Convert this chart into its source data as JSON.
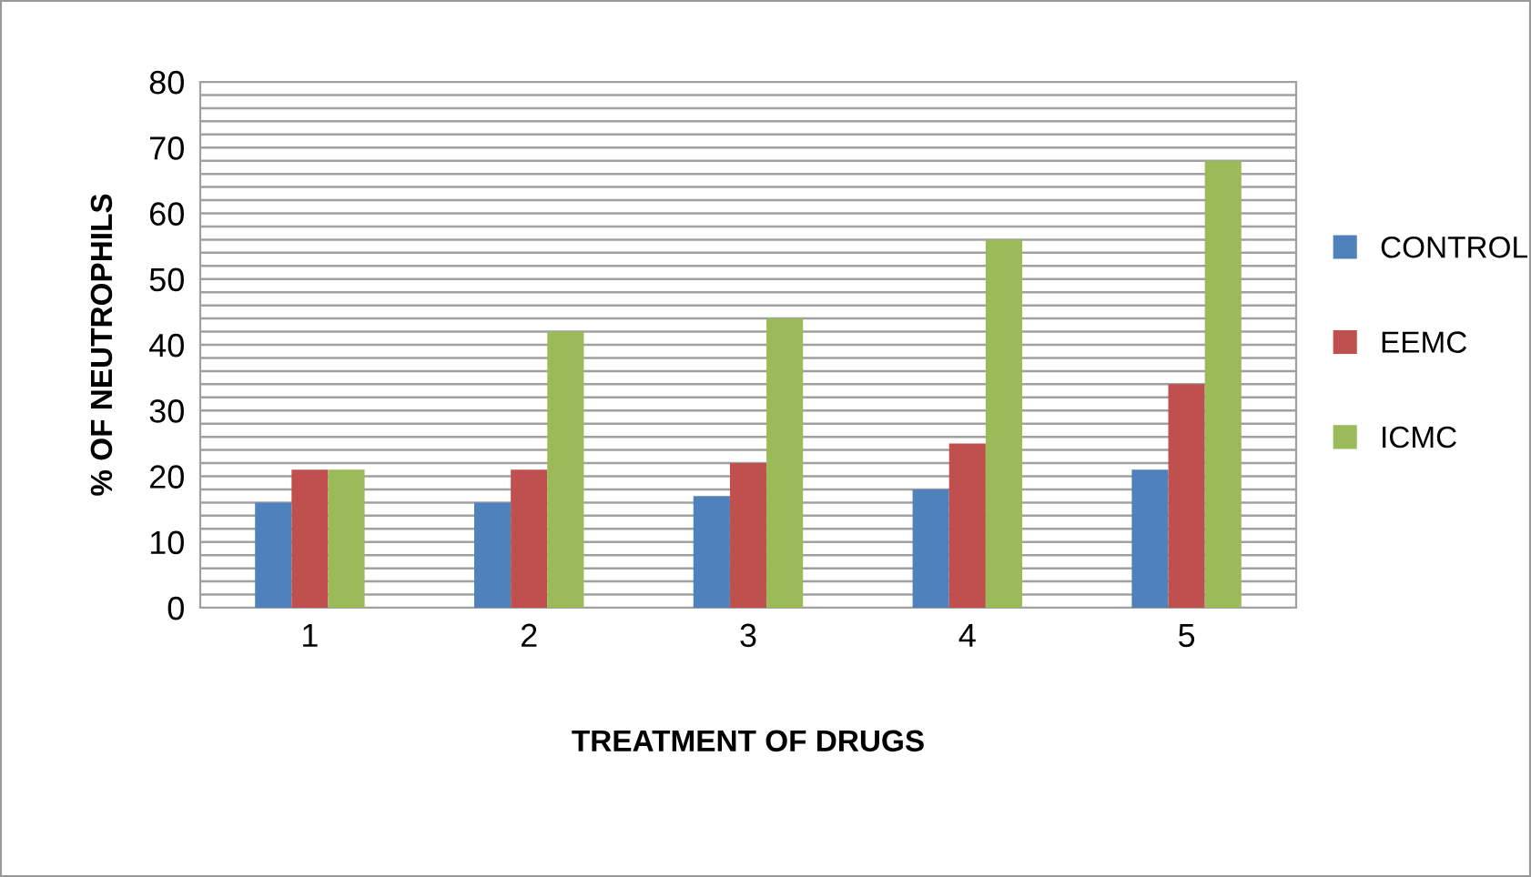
{
  "chart_data": {
    "type": "bar",
    "xlabel": "TREATMENT OF DRUGS",
    "ylabel": "% OF NEUTROPHILS",
    "categories": [
      "1",
      "2",
      "3",
      "4",
      "5"
    ],
    "series": [
      {
        "name": "CONTROL",
        "color": "#4f81bd",
        "values": [
          16,
          16,
          17,
          18,
          21
        ]
      },
      {
        "name": "EEMC",
        "color": "#c0504d",
        "values": [
          21,
          21,
          22,
          25,
          34
        ]
      },
      {
        "name": "ICMC",
        "color": "#9bbb59",
        "values": [
          21,
          42,
          44,
          56,
          68
        ]
      }
    ],
    "ylim": [
      0,
      80
    ],
    "yticks": [
      0,
      {
        "value": 2,
        "label": null
      },
      {
        "value": 4,
        "label": null
      },
      {
        "value": 6,
        "label": null
      },
      {
        "value": 8,
        "label": null
      },
      10,
      {
        "value": 12,
        "label": null
      },
      {
        "value": 14,
        "label": null
      },
      {
        "value": 16,
        "label": null
      },
      {
        "value": 18,
        "label": null
      },
      20,
      {
        "value": 22,
        "label": null
      },
      {
        "value": 24,
        "label": null
      },
      {
        "value": 26,
        "label": null
      },
      {
        "value": 28,
        "label": null
      },
      30,
      {
        "value": 32,
        "label": null
      },
      {
        "value": 34,
        "label": null
      },
      {
        "value": 36,
        "label": null
      },
      {
        "value": 38,
        "label": null
      },
      40,
      {
        "value": 42,
        "label": null
      },
      {
        "value": 44,
        "label": null
      },
      {
        "value": 46,
        "label": null
      },
      {
        "value": 48,
        "label": null
      },
      50,
      {
        "value": 52,
        "label": null
      },
      {
        "value": 54,
        "label": null
      },
      {
        "value": 56,
        "label": null
      },
      {
        "value": 58,
        "label": null
      },
      60,
      {
        "value": 62,
        "label": null
      },
      {
        "value": 64,
        "label": null
      },
      {
        "value": 66,
        "label": null
      },
      {
        "value": 68,
        "label": null
      },
      70,
      {
        "value": 72,
        "label": null
      },
      {
        "value": 74,
        "label": null
      },
      {
        "value": 76,
        "label": null
      },
      {
        "value": 78,
        "label": null
      },
      80
    ],
    "grid": "y",
    "legend": "right"
  }
}
